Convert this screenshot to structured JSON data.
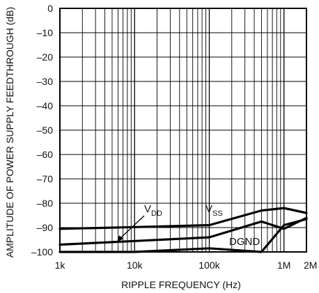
{
  "chart_data": {
    "type": "line",
    "xlabel": "RIPPLE FREQUENCY (Hz)",
    "ylabel": "AMPLITUDE OF POWER SUPPLY FEEDTHROUGH (dB)",
    "x_scale": "log",
    "xlim": [
      1000,
      2000000
    ],
    "ylim": [
      -100,
      0
    ],
    "grid": true,
    "x_ticks": [
      {
        "value": 1000,
        "label": "1k"
      },
      {
        "value": 10000,
        "label": "10k"
      },
      {
        "value": 100000,
        "label": "100k"
      },
      {
        "value": 1000000,
        "label": "1M"
      },
      {
        "value": 2000000,
        "label": "2M"
      }
    ],
    "y_ticks": [
      {
        "value": 0,
        "label": "0"
      },
      {
        "value": -10,
        "label": "–10"
      },
      {
        "value": -20,
        "label": "–20"
      },
      {
        "value": -30,
        "label": "–30"
      },
      {
        "value": -40,
        "label": "–40"
      },
      {
        "value": -50,
        "label": "–50"
      },
      {
        "value": -60,
        "label": "–60"
      },
      {
        "value": -70,
        "label": "–70"
      },
      {
        "value": -80,
        "label": "–80"
      },
      {
        "value": -90,
        "label": "–90"
      },
      {
        "value": -100,
        "label": "–100"
      }
    ],
    "series": [
      {
        "id": "vss",
        "x": [
          1000,
          10000,
          100000,
          500000,
          1000000,
          2000000
        ],
        "y": [
          -90.5,
          -89.8,
          -89,
          -83,
          -82,
          -84
        ]
      },
      {
        "id": "vdd",
        "x": [
          1000,
          10000,
          100000,
          500000,
          1000000,
          2000000
        ],
        "y": [
          -97,
          -95.5,
          -94,
          -87.5,
          -90.5,
          -86
        ]
      },
      {
        "id": "dgnd",
        "x": [
          1000,
          10000,
          100000,
          500000,
          1000000,
          2000000
        ],
        "y": [
          -100,
          -100,
          -98.5,
          -100,
          -89,
          -86.5
        ]
      }
    ],
    "annotations": [
      {
        "series": "vdd",
        "main": "V",
        "sub": "DD"
      },
      {
        "series": "vss",
        "main": "V",
        "sub": "SS"
      },
      {
        "series": "dgnd",
        "main": "DGND",
        "sub": ""
      }
    ]
  }
}
